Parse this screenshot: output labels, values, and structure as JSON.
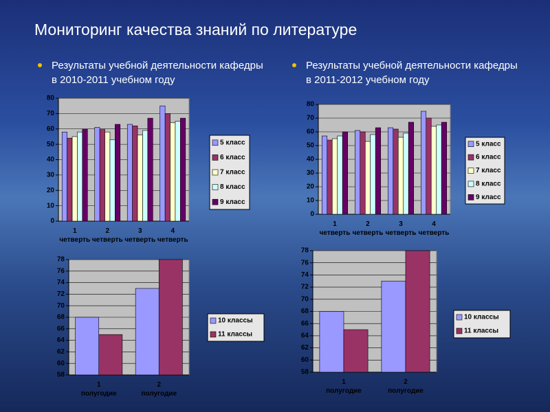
{
  "title": "Мониторинг качества знаний  по литературе",
  "bullets": [
    "Результаты учебной деятельности кафедры в 2010-2011 учебном году",
    "Результаты учебной деятельности кафедры в 2011-2012 учебном году"
  ],
  "chart_data": [
    {
      "type": "bar",
      "categories": [
        "1\nчетверть",
        "2\nчетверть",
        "3\nчетверть",
        "4\nчетверть"
      ],
      "series": [
        {
          "name": "5 класс",
          "color": "#9999ff",
          "values": [
            58,
            61,
            63,
            75
          ]
        },
        {
          "name": "6 класс",
          "color": "#993366",
          "values": [
            54,
            60,
            62,
            70
          ]
        },
        {
          "name": "7 класс",
          "color": "#ffffcc",
          "values": [
            55,
            58,
            56,
            64
          ]
        },
        {
          "name": "8 класс",
          "color": "#ccffff",
          "values": [
            58,
            53,
            59,
            65
          ]
        },
        {
          "name": "9 класс",
          "color": "#660066",
          "values": [
            60,
            63,
            67,
            67
          ]
        }
      ],
      "ylim": [
        0,
        80
      ],
      "yticks": [
        0,
        10,
        20,
        30,
        40,
        50,
        60,
        70,
        80
      ],
      "grid": true
    },
    {
      "type": "bar",
      "categories": [
        "1\nчетверть",
        "2\nчетверть",
        "3\nчетверть",
        "4\nчетверть"
      ],
      "series": [
        {
          "name": "5 класс",
          "color": "#9999ff",
          "values": [
            57,
            61,
            63,
            75
          ]
        },
        {
          "name": "6 класс",
          "color": "#993366",
          "values": [
            54,
            60,
            62,
            70
          ]
        },
        {
          "name": "7 класс",
          "color": "#ffffcc",
          "values": [
            55,
            53,
            56,
            64
          ]
        },
        {
          "name": "8 класс",
          "color": "#ccffff",
          "values": [
            57,
            58,
            59,
            65
          ]
        },
        {
          "name": "9 класс",
          "color": "#660066",
          "values": [
            60,
            63,
            67,
            67
          ]
        }
      ],
      "ylim": [
        0,
        80
      ],
      "yticks": [
        0,
        10,
        20,
        30,
        40,
        50,
        60,
        70,
        80
      ],
      "grid": true
    },
    {
      "type": "bar",
      "categories": [
        "1\nполугодие",
        "2\nполугодие"
      ],
      "series": [
        {
          "name": "10 классы",
          "color": "#9999ff",
          "values": [
            68,
            73
          ]
        },
        {
          "name": "11 классы",
          "color": "#993366",
          "values": [
            65,
            78
          ]
        }
      ],
      "ylim": [
        58,
        78
      ],
      "yticks": [
        58,
        60,
        62,
        64,
        66,
        68,
        70,
        72,
        74,
        76,
        78
      ],
      "grid": true
    },
    {
      "type": "bar",
      "categories": [
        "1\nполугодие",
        "2\nполугодие"
      ],
      "series": [
        {
          "name": "10 классы",
          "color": "#9999ff",
          "values": [
            68,
            73
          ]
        },
        {
          "name": "11 классы",
          "color": "#993366",
          "values": [
            65,
            78
          ]
        }
      ],
      "ylim": [
        58,
        78
      ],
      "yticks": [
        58,
        60,
        62,
        64,
        66,
        68,
        70,
        72,
        74,
        76,
        78
      ],
      "grid": true
    }
  ]
}
